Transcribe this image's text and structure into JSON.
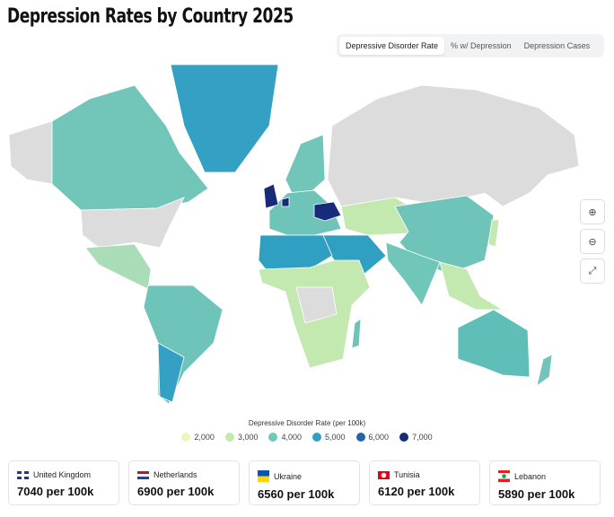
{
  "title": "Depression Rates by Country 2025",
  "tabs": [
    {
      "label": "Depressive Disorder Rate",
      "active": true
    },
    {
      "label": "% w/ Depression"
    },
    {
      "label": "Depression Cases"
    }
  ],
  "controls": {
    "zoom_in": "zoom-in-icon",
    "zoom_out": "zoom-out-icon",
    "fullscreen": "fullscreen-icon"
  },
  "legend": {
    "title": "Depressive Disorder Rate (per 100k)",
    "items": [
      {
        "label": "2,000",
        "color": "#edf8b8"
      },
      {
        "label": "3,000",
        "color": "#c3e8b0"
      },
      {
        "label": "4,000",
        "color": "#70c6b8"
      },
      {
        "label": "5,000",
        "color": "#30a0c2"
      },
      {
        "label": "6,000",
        "color": "#2564ad"
      },
      {
        "label": "7,000",
        "color": "#162b7a"
      }
    ]
  },
  "cards": [
    {
      "country": "United Kingdom",
      "value": "7040 per 100k"
    },
    {
      "country": "Netherlands",
      "value": "6900 per 100k"
    },
    {
      "country": "Ukraine",
      "value": "6560 per 100k"
    },
    {
      "country": "Tunisia",
      "value": "6120 per 100k"
    },
    {
      "country": "Lebanon",
      "value": "5890 per 100k"
    }
  ]
}
